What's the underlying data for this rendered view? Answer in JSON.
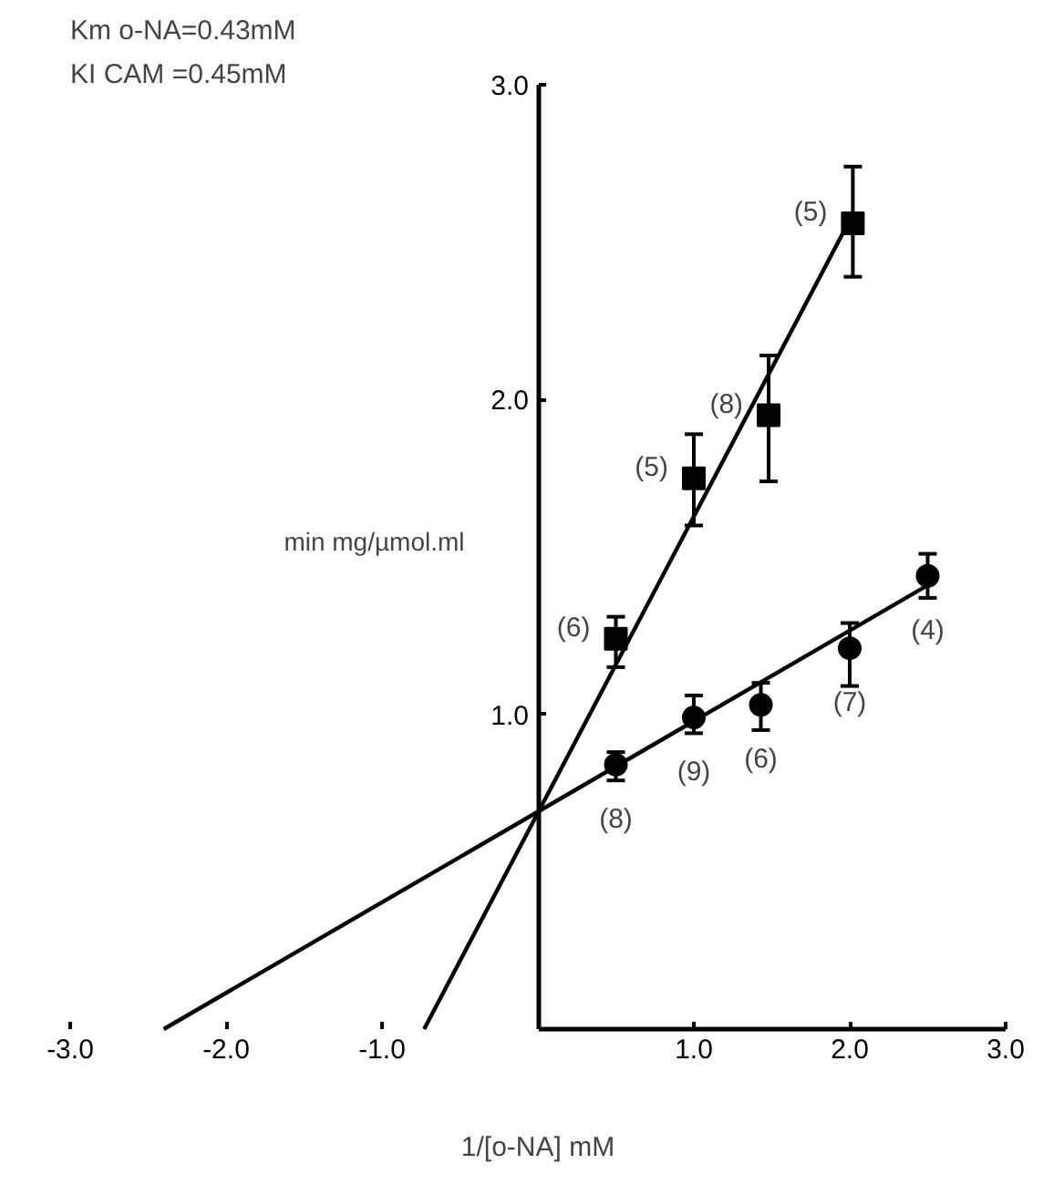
{
  "chart_data": {
    "type": "scatter",
    "xlabel": "1/[o-NA] mM",
    "ylabel": "min mg/µmol.ml",
    "xlim": [
      -3.0,
      3.0
    ],
    "ylim": [
      0,
      3.0
    ],
    "xticks": [
      {
        "value": -3,
        "label": "-3.0"
      },
      {
        "value": -2,
        "label": "-2.0"
      },
      {
        "value": -1,
        "label": "-1.0"
      },
      {
        "value": 1,
        "label": "1.0"
      },
      {
        "value": 2,
        "label": "2.0"
      },
      {
        "value": 3,
        "label": "3.0"
      }
    ],
    "yticks": [
      {
        "value": 1,
        "label": "1.0"
      },
      {
        "value": 2,
        "label": "2.0"
      },
      {
        "value": 3,
        "label": "3.0"
      }
    ],
    "grid": false,
    "series": [
      {
        "marker": "square",
        "color": "#000000",
        "x": [
          0.5,
          1.0,
          1.48,
          2.02
        ],
        "values": [
          1.24,
          1.75,
          1.95,
          2.56
        ],
        "errors": [
          [
            1.15,
            1.31
          ],
          [
            1.6,
            1.89
          ],
          [
            1.74,
            2.14
          ],
          [
            2.39,
            2.74
          ]
        ]
      },
      {
        "marker": "circle",
        "color": "#000000",
        "x": [
          0.5,
          1.0,
          1.43,
          2.0,
          2.5
        ],
        "values": [
          0.84,
          0.99,
          1.03,
          1.21,
          1.44
        ],
        "errors": [
          [
            0.79,
            0.88
          ],
          [
            0.94,
            1.06
          ],
          [
            0.95,
            1.1
          ],
          [
            1.09,
            1.29
          ],
          [
            1.37,
            1.51
          ]
        ]
      },
      {
        "type": "line",
        "color": "#000000",
        "x": [
          -0.73,
          2.0
        ],
        "values": [
          0,
          2.57
        ]
      },
      {
        "type": "line",
        "color": "#000000",
        "x": [
          -2.4,
          2.5
        ],
        "values": [
          0,
          1.41
        ]
      }
    ],
    "annotations": [
      "Km o-NA=0.43mM",
      "KI CAM =0.45mM",
      {
        "text": "(6)",
        "x": 0.5,
        "y": 1.24
      },
      {
        "text": "(5)",
        "x": 1.0,
        "y": 1.75
      },
      {
        "text": "(8)",
        "x": 1.48,
        "y": 1.95
      },
      {
        "text": "(5)",
        "x": 2.02,
        "y": 2.56
      },
      {
        "text": "(8)",
        "x": 0.5,
        "y": 0.84
      },
      {
        "text": "(9)",
        "x": 1.0,
        "y": 0.99
      },
      {
        "text": "(6)",
        "x": 1.43,
        "y": 1.03
      },
      {
        "text": "(7)",
        "x": 2.0,
        "y": 1.21
      },
      {
        "text": "(4)",
        "x": 2.5,
        "y": 1.44
      }
    ]
  }
}
